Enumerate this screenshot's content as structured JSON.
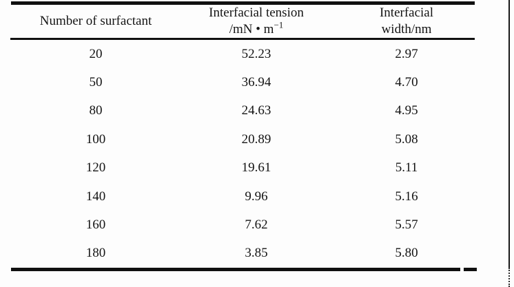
{
  "table": {
    "headers": {
      "col1": "Number of surfactant",
      "col2_line1": "Interfacial tension",
      "col2_line2_base": "/mN • m",
      "col2_line2_sup": "−1",
      "col3_line1": "Interfacial",
      "col3_line2": "width/nm"
    },
    "rows": [
      {
        "surfactant": "20",
        "tension": "52.23",
        "width": "2.97"
      },
      {
        "surfactant": "50",
        "tension": "36.94",
        "width": "4.70"
      },
      {
        "surfactant": "80",
        "tension": "24.63",
        "width": "4.95"
      },
      {
        "surfactant": "100",
        "tension": "20.89",
        "width": "5.08"
      },
      {
        "surfactant": "120",
        "tension": "19.61",
        "width": "5.11"
      },
      {
        "surfactant": "140",
        "tension": "9.96",
        "width": "5.16"
      },
      {
        "surfactant": "160",
        "tension": "7.62",
        "width": "5.57"
      },
      {
        "surfactant": "180",
        "tension": "3.85",
        "width": "5.80"
      }
    ]
  },
  "colors": {
    "ink": "#101010",
    "background": "#fdfdfd"
  },
  "chart_data": {
    "type": "table",
    "columns": [
      "Number of surfactant",
      "Interfacial tension /mN·m⁻¹",
      "Interfacial width/nm"
    ],
    "rows": [
      [
        20,
        52.23,
        2.97
      ],
      [
        50,
        36.94,
        4.7
      ],
      [
        80,
        24.63,
        4.95
      ],
      [
        100,
        20.89,
        5.08
      ],
      [
        120,
        19.61,
        5.11
      ],
      [
        140,
        9.96,
        5.16
      ],
      [
        160,
        7.62,
        5.57
      ],
      [
        180,
        3.85,
        5.8
      ]
    ]
  }
}
